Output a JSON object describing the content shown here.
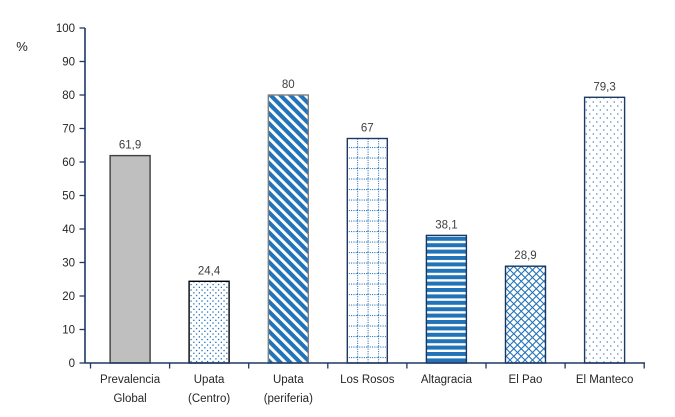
{
  "chart_data": {
    "type": "bar",
    "title": "",
    "ylabel": "%",
    "xlabel": "",
    "ylim": [
      0,
      100
    ],
    "ytick_step": 10,
    "yticks": [
      "0",
      "10",
      "20",
      "30",
      "40",
      "50",
      "60",
      "70",
      "80",
      "90",
      "100"
    ],
    "categories": [
      "Prevalencia Global",
      "Upata (Centro)",
      "Upata (periferia)",
      "Los Rosos",
      "Altagracia",
      "El Pao",
      "El Manteco"
    ],
    "category_label_lines": [
      [
        "Prevalencia",
        "Global"
      ],
      [
        "Upata",
        "(Centro)"
      ],
      [
        "Upata",
        "(periferia)"
      ],
      [
        "Los Rosos"
      ],
      [
        "Altagracia"
      ],
      [
        "El Pao"
      ],
      [
        "El Manteco"
      ]
    ],
    "values": [
      61.9,
      24.4,
      80,
      67,
      38.1,
      28.9,
      79.3
    ],
    "value_labels": [
      "61,9",
      "24,4",
      "80",
      "67",
      "38,1",
      "28,9",
      "79,3"
    ],
    "bar_styles": [
      {
        "pattern": "solid",
        "border": "#404040"
      },
      {
        "pattern": "dots-dense",
        "border": "#000000"
      },
      {
        "pattern": "diagonal",
        "border": "#7F7F7F"
      },
      {
        "pattern": "dotted-grid",
        "border": "#1F3864"
      },
      {
        "pattern": "horizontal",
        "border": "#17375E"
      },
      {
        "pattern": "crosshatch",
        "border": "#17375E"
      },
      {
        "pattern": "dots-sparse",
        "border": "#1F3864"
      }
    ],
    "colors": {
      "pattern_blue": "#2273B8",
      "gray_fill": "#BFBFBF",
      "axis": "#1F3864",
      "value_label_text": "#404040",
      "tick_text": "#262626"
    },
    "grid": false,
    "legend": false
  }
}
